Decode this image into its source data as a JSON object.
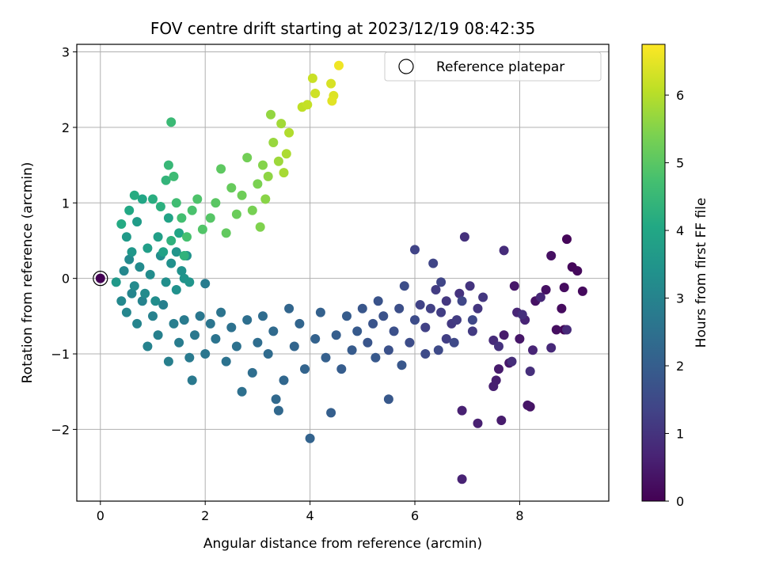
{
  "chart_data": {
    "type": "scatter",
    "title": "FOV centre drift starting at 2023/12/19 08:42:35",
    "xlabel": "Angular distance from reference (arcmin)",
    "ylabel": "Rotation from reference (arcmin)",
    "colorbar_label": "Hours from first FF file",
    "xlim": [
      -0.45,
      9.7
    ],
    "ylim": [
      -2.95,
      3.1
    ],
    "x_ticks": [
      "0",
      "2",
      "4",
      "6",
      "8"
    ],
    "y_ticks": [
      "−2",
      "−1",
      "0",
      "1",
      "2",
      "3"
    ],
    "colorbar_ticks": [
      "0",
      "1",
      "2",
      "3",
      "4",
      "5",
      "6"
    ],
    "colorbar_range": [
      0,
      6.75
    ],
    "colormap": "viridis",
    "grid": true,
    "legend": {
      "position": "top-right",
      "entries": [
        "Reference platepar"
      ]
    },
    "reference_point": {
      "x": 0,
      "y": 0,
      "label": "Reference platepar"
    },
    "points": [
      [
        8.85,
        -0.68,
        0.05
      ],
      [
        8.9,
        0.52,
        0.1
      ],
      [
        9.0,
        0.15,
        0.12
      ],
      [
        9.1,
        0.1,
        0.15
      ],
      [
        9.2,
        -0.17,
        0.18
      ],
      [
        8.8,
        -0.4,
        0.2
      ],
      [
        8.85,
        -0.12,
        0.22
      ],
      [
        8.7,
        -0.68,
        0.25
      ],
      [
        8.6,
        0.3,
        0.28
      ],
      [
        8.5,
        -0.15,
        0.3
      ],
      [
        8.3,
        -0.3,
        0.32
      ],
      [
        8.2,
        -1.7,
        0.35
      ],
      [
        8.15,
        -1.68,
        0.38
      ],
      [
        8.0,
        -0.8,
        0.4
      ],
      [
        7.9,
        -0.1,
        0.42
      ],
      [
        7.8,
        -1.12,
        0.45
      ],
      [
        7.7,
        -0.75,
        0.48
      ],
      [
        7.6,
        -1.2,
        0.5
      ],
      [
        7.65,
        -1.88,
        0.52
      ],
      [
        7.55,
        -1.35,
        0.55
      ],
      [
        7.5,
        -1.43,
        0.58
      ],
      [
        7.2,
        -1.92,
        0.6
      ],
      [
        6.9,
        -1.75,
        0.62
      ],
      [
        6.9,
        -2.66,
        0.65
      ],
      [
        8.1,
        -0.55,
        0.68
      ],
      [
        8.25,
        -0.95,
        0.7
      ],
      [
        7.95,
        -0.45,
        0.72
      ],
      [
        8.4,
        -0.25,
        0.75
      ],
      [
        8.6,
        -0.92,
        0.78
      ],
      [
        8.9,
        -0.68,
        0.8
      ],
      [
        7.5,
        -0.82,
        0.82
      ],
      [
        7.7,
        0.37,
        0.85
      ],
      [
        7.85,
        -1.1,
        0.88
      ],
      [
        8.2,
        -1.23,
        0.9
      ],
      [
        8.05,
        -0.48,
        0.92
      ],
      [
        6.95,
        0.55,
        0.95
      ],
      [
        7.6,
        -0.9,
        0.97
      ],
      [
        6.85,
        -0.2,
        1.0
      ],
      [
        7.05,
        -0.1,
        1.02
      ],
      [
        7.2,
        -0.4,
        1.05
      ],
      [
        7.3,
        -0.25,
        1.08
      ],
      [
        6.6,
        -0.3,
        1.1
      ],
      [
        6.7,
        -0.6,
        1.12
      ],
      [
        7.1,
        -0.7,
        1.15
      ],
      [
        6.8,
        -0.55,
        1.18
      ],
      [
        6.4,
        -0.15,
        1.2
      ],
      [
        6.5,
        -0.45,
        1.22
      ],
      [
        6.6,
        -0.8,
        1.25
      ],
      [
        6.3,
        -0.4,
        1.28
      ],
      [
        6.2,
        -0.65,
        1.3
      ],
      [
        6.1,
        -0.35,
        1.32
      ],
      [
        6.0,
        0.38,
        1.35
      ],
      [
        6.35,
        0.2,
        1.38
      ],
      [
        6.5,
        -0.05,
        1.4
      ],
      [
        6.9,
        -0.3,
        1.42
      ],
      [
        7.1,
        -0.55,
        1.45
      ],
      [
        6.75,
        -0.85,
        1.48
      ],
      [
        6.45,
        -0.95,
        1.5
      ],
      [
        6.2,
        -1.0,
        1.52
      ],
      [
        6.0,
        -0.55,
        1.55
      ],
      [
        5.9,
        -0.85,
        1.58
      ],
      [
        5.8,
        -0.1,
        1.6
      ],
      [
        5.7,
        -0.4,
        1.62
      ],
      [
        5.6,
        -0.7,
        1.65
      ],
      [
        5.5,
        -0.95,
        1.68
      ],
      [
        5.4,
        -0.5,
        1.7
      ],
      [
        5.3,
        -0.3,
        1.72
      ],
      [
        5.2,
        -0.6,
        1.75
      ],
      [
        5.1,
        -0.85,
        1.78
      ],
      [
        5.0,
        -0.4,
        1.8
      ],
      [
        5.75,
        -1.15,
        1.82
      ],
      [
        5.5,
        -1.6,
        1.85
      ],
      [
        5.25,
        -1.05,
        1.88
      ],
      [
        4.9,
        -0.7,
        1.9
      ],
      [
        4.8,
        -0.95,
        1.92
      ],
      [
        4.7,
        -0.5,
        1.95
      ],
      [
        4.6,
        -1.2,
        1.98
      ],
      [
        4.5,
        -0.75,
        2.0
      ],
      [
        4.4,
        -1.78,
        2.02
      ],
      [
        4.3,
        -1.05,
        2.05
      ],
      [
        4.2,
        -0.45,
        2.08
      ],
      [
        4.1,
        -0.8,
        2.1
      ],
      [
        4.0,
        -2.12,
        2.12
      ],
      [
        3.9,
        -1.2,
        2.15
      ],
      [
        3.8,
        -0.6,
        2.18
      ],
      [
        3.7,
        -0.9,
        2.2
      ],
      [
        3.6,
        -0.4,
        2.22
      ],
      [
        3.5,
        -1.35,
        2.25
      ],
      [
        3.4,
        -1.75,
        2.28
      ],
      [
        3.35,
        -1.6,
        2.3
      ],
      [
        3.3,
        -0.7,
        2.32
      ],
      [
        3.2,
        -1.0,
        2.35
      ],
      [
        3.1,
        -0.5,
        2.38
      ],
      [
        3.0,
        -0.85,
        2.4
      ],
      [
        2.9,
        -1.25,
        2.42
      ],
      [
        2.8,
        -0.55,
        2.45
      ],
      [
        2.7,
        -1.5,
        2.48
      ],
      [
        2.6,
        -0.9,
        2.5
      ],
      [
        2.5,
        -0.65,
        2.52
      ],
      [
        2.4,
        -1.1,
        2.55
      ],
      [
        2.3,
        -0.45,
        2.58
      ],
      [
        2.2,
        -0.8,
        2.6
      ],
      [
        2.1,
        -0.6,
        2.62
      ],
      [
        2.0,
        -1.0,
        2.65
      ],
      [
        1.9,
        -0.5,
        2.68
      ],
      [
        1.8,
        -0.75,
        2.7
      ],
      [
        1.75,
        -1.35,
        2.72
      ],
      [
        1.7,
        -1.05,
        2.75
      ],
      [
        1.6,
        -0.55,
        2.78
      ],
      [
        1.5,
        -0.85,
        2.8
      ],
      [
        2.0,
        -0.07,
        2.82
      ],
      [
        1.4,
        -0.6,
        2.85
      ],
      [
        1.3,
        -1.1,
        2.88
      ],
      [
        1.2,
        -0.35,
        2.9
      ],
      [
        1.1,
        -0.75,
        2.92
      ],
      [
        1.0,
        -0.5,
        2.95
      ],
      [
        0.9,
        -0.9,
        2.97
      ],
      [
        0.8,
        -0.3,
        3.0
      ],
      [
        0.7,
        -0.6,
        3.02
      ],
      [
        0.6,
        -0.2,
        3.05
      ],
      [
        0.5,
        -0.45,
        3.08
      ],
      [
        0.45,
        0.1,
        3.1
      ],
      [
        0.4,
        -0.3,
        3.12
      ],
      [
        0.55,
        0.25,
        3.15
      ],
      [
        0.65,
        -0.1,
        3.18
      ],
      [
        0.75,
        0.15,
        3.2
      ],
      [
        0.85,
        -0.2,
        3.22
      ],
      [
        0.95,
        0.05,
        3.25
      ],
      [
        1.05,
        -0.3,
        3.28
      ],
      [
        1.15,
        0.3,
        3.3
      ],
      [
        1.25,
        -0.05,
        3.32
      ],
      [
        1.35,
        0.2,
        3.35
      ],
      [
        1.45,
        -0.15,
        3.38
      ],
      [
        1.55,
        0.1,
        3.4
      ],
      [
        1.65,
        0.3,
        3.42
      ],
      [
        1.6,
        0.0,
        3.45
      ],
      [
        1.7,
        -0.05,
        3.48
      ],
      [
        1.45,
        0.35,
        3.5
      ],
      [
        0.6,
        0.35,
        3.55
      ],
      [
        0.3,
        -0.05,
        3.6
      ],
      [
        0.5,
        0.55,
        3.65
      ],
      [
        0.7,
        0.75,
        3.7
      ],
      [
        0.9,
        0.4,
        3.75
      ],
      [
        1.1,
        0.55,
        3.8
      ],
      [
        1.2,
        0.35,
        3.85
      ],
      [
        1.3,
        0.8,
        3.9
      ],
      [
        1.5,
        0.6,
        3.95
      ],
      [
        0.8,
        1.05,
        4.0
      ],
      [
        0.55,
        0.9,
        4.05
      ],
      [
        0.4,
        0.72,
        4.1
      ],
      [
        0.65,
        1.1,
        4.15
      ],
      [
        1.0,
        1.05,
        4.2
      ],
      [
        1.15,
        0.95,
        4.25
      ],
      [
        1.35,
        0.5,
        4.3
      ],
      [
        1.6,
        0.3,
        4.35
      ],
      [
        1.25,
        1.3,
        4.4
      ],
      [
        1.3,
        1.5,
        4.5
      ],
      [
        1.35,
        2.07,
        4.55
      ],
      [
        1.4,
        1.35,
        4.6
      ],
      [
        1.45,
        1.0,
        4.65
      ],
      [
        1.55,
        0.8,
        4.7
      ],
      [
        1.65,
        0.55,
        4.75
      ],
      [
        1.75,
        0.9,
        4.8
      ],
      [
        1.85,
        1.05,
        4.85
      ],
      [
        1.95,
        0.65,
        4.9
      ],
      [
        2.1,
        0.8,
        4.95
      ],
      [
        2.2,
        1.0,
        5.0
      ],
      [
        2.3,
        1.45,
        5.05
      ],
      [
        2.4,
        0.6,
        5.1
      ],
      [
        2.5,
        1.2,
        5.15
      ],
      [
        2.6,
        0.85,
        5.2
      ],
      [
        2.7,
        1.1,
        5.25
      ],
      [
        2.8,
        1.6,
        5.3
      ],
      [
        2.9,
        0.9,
        5.35
      ],
      [
        3.0,
        1.25,
        5.4
      ],
      [
        3.05,
        0.68,
        5.45
      ],
      [
        3.1,
        1.5,
        5.5
      ],
      [
        3.15,
        1.05,
        5.55
      ],
      [
        3.2,
        1.35,
        5.6
      ],
      [
        3.25,
        2.17,
        5.65
      ],
      [
        3.3,
        1.8,
        5.7
      ],
      [
        3.4,
        1.55,
        5.75
      ],
      [
        3.45,
        2.05,
        5.8
      ],
      [
        3.5,
        1.4,
        5.85
      ],
      [
        3.55,
        1.65,
        5.9
      ],
      [
        3.6,
        1.93,
        5.95
      ],
      [
        3.85,
        2.27,
        6.1
      ],
      [
        3.95,
        2.3,
        6.15
      ],
      [
        4.05,
        2.65,
        6.2
      ],
      [
        4.1,
        2.45,
        6.25
      ],
      [
        4.4,
        2.58,
        6.35
      ],
      [
        4.45,
        2.42,
        6.4
      ],
      [
        4.42,
        2.35,
        6.45
      ],
      [
        4.55,
        2.82,
        6.6
      ]
    ]
  }
}
